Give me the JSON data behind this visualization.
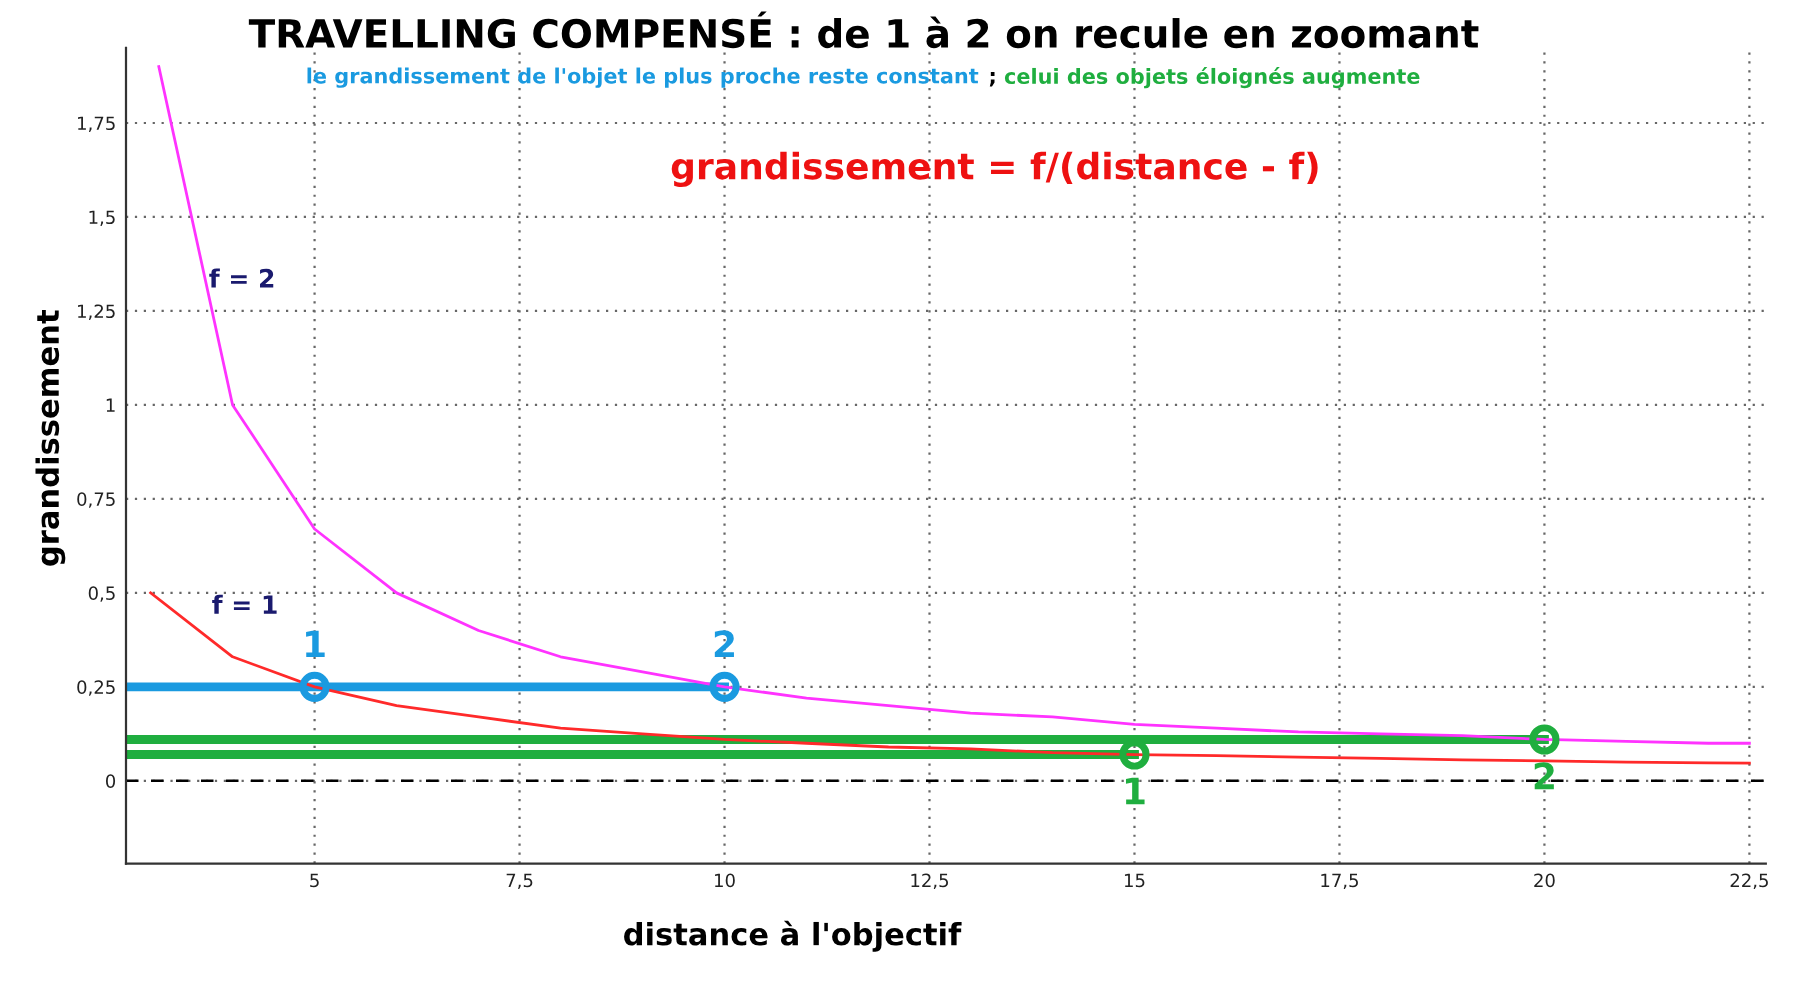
{
  "chart_data": {
    "type": "line",
    "title": "TRAVELLING COMPENSÉ : de 1 à 2 on recule en zoomant",
    "subtitle": "le grandissement de l'objet le plus proche reste constant ; celui des objets éloignés augmente",
    "xlabel": "distance à l'objectif",
    "ylabel": "grandissement",
    "annotations": [
      "grandissement = f/(distance - f)",
      {
        "text": "1",
        "x": 5,
        "y": 0.25
      },
      {
        "text": "2",
        "x": 10,
        "y": 0.25
      },
      {
        "text": "1",
        "x": 15,
        "y": 0.07
      },
      {
        "text": "2",
        "x": 20,
        "y": 0.11
      }
    ],
    "xlim": [
      2.7,
      22.7
    ],
    "ylim": [
      -0.22,
      1.95
    ],
    "xticks": [
      5,
      {
        "value": 7.5,
        "label": "7,5"
      },
      10,
      {
        "value": 12.5,
        "label": "12,5"
      },
      15,
      {
        "value": 17.5,
        "label": "17,5"
      },
      20,
      {
        "value": 22.5,
        "label": "22,5"
      }
    ],
    "yticks": [
      0,
      {
        "value": 0.25,
        "label": "0,25"
      },
      {
        "value": 0.5,
        "label": "0,5"
      },
      {
        "value": 0.75,
        "label": "0,75"
      },
      1,
      {
        "value": 1.25,
        "label": "1,25"
      },
      {
        "value": 1.5,
        "label": "1,5"
      },
      {
        "value": 1.75,
        "label": "1,75"
      }
    ],
    "grid": true,
    "legend": false,
    "ref_lines": [
      {
        "axis": "y",
        "value": 0,
        "color": "#000000",
        "line_style": "dashed"
      }
    ],
    "series": [
      {
        "name": "f = 2",
        "color": "#ff33ff",
        "marker": "none",
        "x": [
          3.1,
          4,
          5,
          6,
          7,
          8,
          9,
          10,
          11,
          12,
          13,
          14,
          15,
          16,
          17,
          18,
          19,
          20,
          21,
          22,
          22.5
        ],
        "values": [
          1.9,
          1,
          0.67,
          0.5,
          0.4,
          0.33,
          0.29,
          0.25,
          0.22,
          0.2,
          0.18,
          0.17,
          0.15,
          0.14,
          0.13,
          0.125,
          0.12,
          0.11,
          0.105,
          0.1,
          0.1
        ]
      },
      {
        "name": "f = 1",
        "color": "#ff2a2a",
        "marker": "none",
        "x": [
          3,
          4,
          5,
          6,
          7,
          8,
          9,
          10,
          11,
          12,
          13,
          14,
          15,
          16,
          17,
          18,
          19,
          20,
          21,
          22,
          22.5
        ],
        "values": [
          0.5,
          0.33,
          0.25,
          0.2,
          0.17,
          0.14,
          0.125,
          0.11,
          0.1,
          0.09,
          0.085,
          0.075,
          0.07,
          0.067,
          0.063,
          0.06,
          0.056,
          0.053,
          0.05,
          0.048,
          0.047
        ]
      },
      {
        "type": "line",
        "color": "#1a9ae0",
        "marker": "none",
        "x": [
          2.7,
          10
        ],
        "values": [
          0.25,
          0.25
        ]
      },
      {
        "type": "line",
        "color": "#1fae3f",
        "marker": "none",
        "x": [
          2.7,
          20
        ],
        "values": [
          0.11,
          0.11
        ]
      },
      {
        "type": "line",
        "color": "#1fae3f",
        "marker": "none",
        "x": [
          2.7,
          15
        ],
        "values": [
          0.07,
          0.07
        ]
      },
      {
        "type": "scatter",
        "color": "#1a9ae0",
        "marker": "circle",
        "x": [
          5,
          10
        ],
        "values": [
          0.25,
          0.25
        ]
      },
      {
        "type": "scatter",
        "color": "#1fae3f",
        "marker": "circle",
        "x": [
          15,
          20
        ],
        "values": [
          0.07,
          0.11
        ]
      }
    ]
  }
}
